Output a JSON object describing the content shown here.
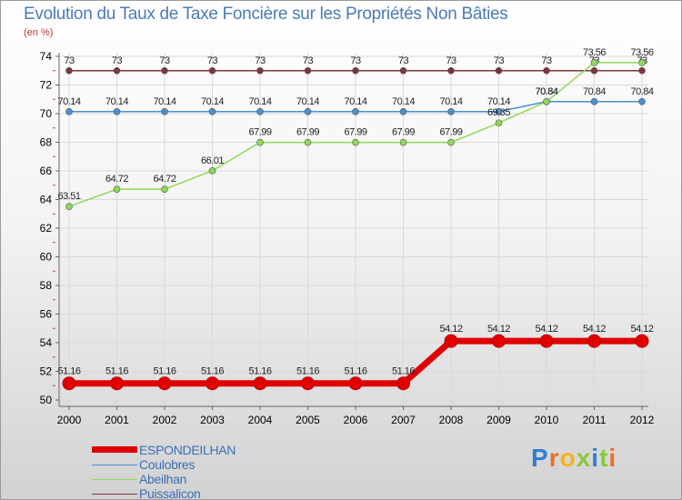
{
  "title": "Evolution du Taux de Taxe Foncière sur les Propriétés Non Bâties",
  "subtitle": "(en %)",
  "brand": "Proxiti",
  "colors": {
    "espondeilhan": "#e00000",
    "coulobres": "#4a8fd0",
    "abeilhan": "#90d858",
    "puissalicon": "#7a3838",
    "axis_text": "#000000",
    "grid": "#d9d9d9"
  },
  "chart_data": {
    "type": "line",
    "title": "Evolution du Taux de Taxe Foncière sur les Propriétés Non Bâties",
    "ylabel": "(en %)",
    "xlabel": "",
    "ylim": [
      50,
      74
    ],
    "yticks": [
      50,
      52,
      54,
      56,
      58,
      60,
      62,
      64,
      66,
      68,
      70,
      72,
      74
    ],
    "categories": [
      "2000",
      "2001",
      "2002",
      "2003",
      "2004",
      "2005",
      "2006",
      "2007",
      "2008",
      "2009",
      "2010",
      "2011",
      "2012"
    ],
    "series": [
      {
        "name": "Puissalicon",
        "color": "#7a3838",
        "values": [
          73,
          73,
          73,
          73,
          73,
          73,
          73,
          73,
          73,
          73,
          73,
          73,
          73
        ],
        "labels": [
          "73",
          "73",
          "73",
          "73",
          "73",
          "73",
          "73",
          "73",
          "73",
          "73",
          "73",
          "73",
          "73"
        ]
      },
      {
        "name": "Coulobres",
        "color": "#4a8fd0",
        "values": [
          70.14,
          70.14,
          70.14,
          70.14,
          70.14,
          70.14,
          70.14,
          70.14,
          70.14,
          70.14,
          70.84,
          70.84,
          70.84
        ],
        "labels": [
          "70.14",
          "70.14",
          "70.14",
          "70.14",
          "70.14",
          "70.14",
          "70.14",
          "70.14",
          "70.14",
          "70.14",
          "70.84",
          "70.84",
          "70.84"
        ]
      },
      {
        "name": "Abeilhan",
        "color": "#90d858",
        "values": [
          63.51,
          64.72,
          64.72,
          66.01,
          67.99,
          67.99,
          67.99,
          67.99,
          67.99,
          69.35,
          70.84,
          73.56,
          73.56
        ],
        "labels": [
          "63.51",
          "64.72",
          "64.72",
          "66.01",
          "67.99",
          "67.99",
          "67.99",
          "67.99",
          "67.99",
          "69.35",
          "70.84",
          "73.56",
          "73.56"
        ]
      },
      {
        "name": "ESPONDEILHAN",
        "color": "#e00000",
        "values": [
          51.16,
          51.16,
          51.16,
          51.16,
          51.16,
          51.16,
          51.16,
          51.16,
          54.12,
          54.12,
          54.12,
          54.12,
          54.12
        ],
        "labels": [
          "51.16",
          "51.16",
          "51.16",
          "51.16",
          "51.16",
          "51.16",
          "51.16",
          "51.16",
          "54.12",
          "54.12",
          "54.12",
          "54.12",
          "54.12"
        ]
      }
    ],
    "legend": [
      "ESPONDEILHAN",
      "Coulobres",
      "Abeilhan",
      "Puissalicon"
    ],
    "legend_position": "bottom-left",
    "grid": true
  }
}
